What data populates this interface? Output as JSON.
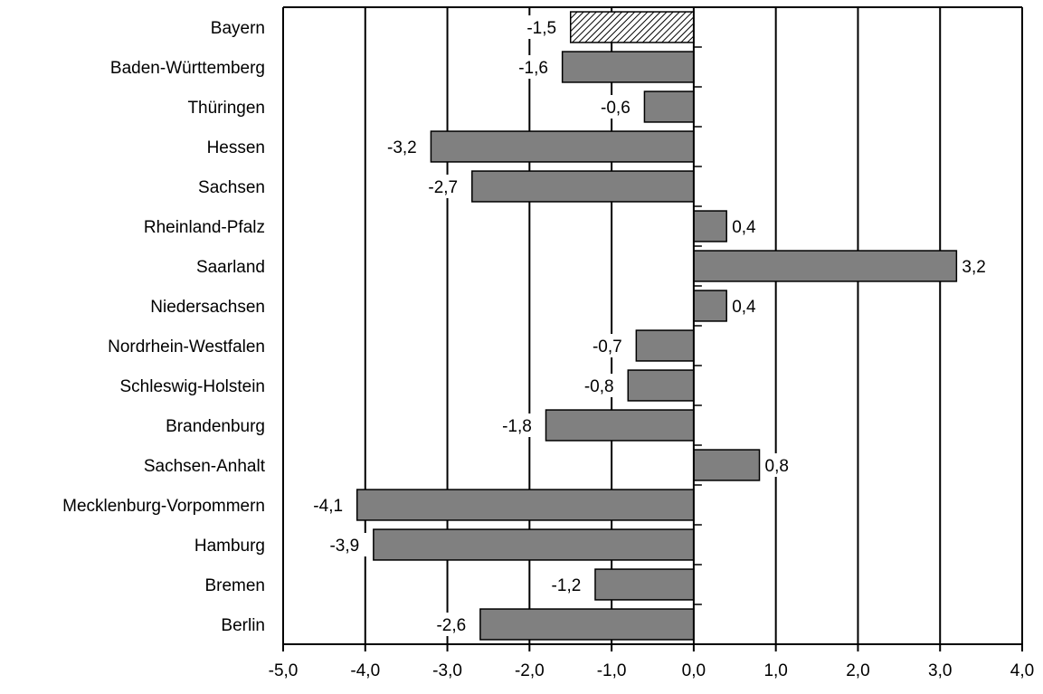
{
  "chart_data": {
    "type": "bar",
    "orientation": "horizontal",
    "categories": [
      "Bayern",
      "Baden-Württemberg",
      "Thüringen",
      "Hessen",
      "Sachsen",
      "Rheinland-Pfalz",
      "Saarland",
      "Niedersachsen",
      "Nordrhein-Westfalen",
      "Schleswig-Holstein",
      "Brandenburg",
      "Sachsen-Anhalt",
      "Mecklenburg-Vorpommern",
      "Hamburg",
      "Bremen",
      "Berlin"
    ],
    "values": [
      -1.5,
      -1.6,
      -0.6,
      -3.2,
      -2.7,
      0.4,
      3.2,
      0.4,
      -0.7,
      -0.8,
      -1.8,
      0.8,
      -4.1,
      -3.9,
      -1.2,
      -2.6
    ],
    "data_labels": [
      "-1,5",
      "-1,6",
      "-0,6",
      "-3,2",
      "-2,7",
      "0,4",
      "3,2",
      "0,4",
      "-0,7",
      "-0,8",
      "-1,8",
      "0,8",
      "-4,1",
      "-3,9",
      "-1,2",
      "-2,6"
    ],
    "highlighted_category": "Bayern",
    "xlim": [
      -5.0,
      4.0
    ],
    "x_ticks": [
      -5,
      -4,
      -3,
      -2,
      -1,
      0,
      1,
      2,
      3,
      4
    ],
    "x_tick_labels": [
      "-5,0",
      "-4,0",
      "-3,0",
      "-2,0",
      "-1,0",
      "0,0",
      "1,0",
      "2,0",
      "3,0",
      "4,0"
    ],
    "grid": "vertical",
    "legend": "none",
    "title": "",
    "xlabel": "",
    "ylabel": "",
    "colors": {
      "bar": "#808080",
      "highlight_hatch": "#000000",
      "axis": "#000000",
      "label_background": "#ffffff"
    }
  }
}
